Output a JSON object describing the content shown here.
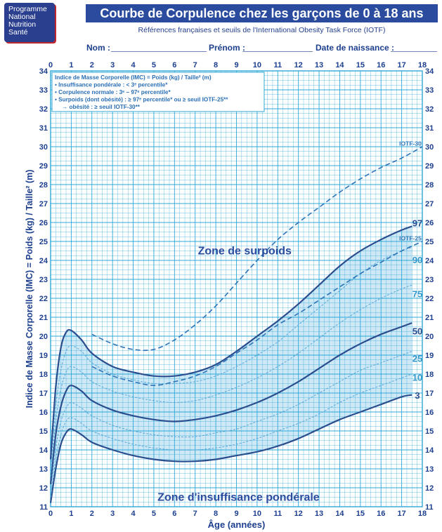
{
  "logo": {
    "lines": [
      "Programme",
      "National",
      "Nutrition",
      "Santé"
    ]
  },
  "header": {
    "title": "Courbe de Corpulence chez les garçons de 0 à 18 ans",
    "subtitle": "Références françaises et seuils de l'International Obesity Task Force (IOTF)",
    "nom_label": "Nom :",
    "prenom_label": "Prénom :",
    "naissance_label": "Date de naissance :"
  },
  "colors": {
    "grid": "#2fa8d8",
    "curve": "#2a4e8e",
    "dashed": "#2d74b6",
    "band": "#c6e4f5"
  },
  "chart_data": {
    "type": "line",
    "xlabel": "Âge (années)",
    "ylabel": "Indice de Masse Corporelle (IMC) = Poids (kg) / Taille² (m)",
    "xlim": [
      0,
      18
    ],
    "ylim": [
      11,
      34
    ],
    "x_ticks": [
      0,
      1,
      2,
      3,
      4,
      5,
      6,
      7,
      8,
      9,
      10,
      11,
      12,
      13,
      14,
      15,
      16,
      17,
      18
    ],
    "y_ticks": [
      11,
      12,
      13,
      14,
      15,
      16,
      17,
      18,
      19,
      20,
      21,
      22,
      23,
      24,
      25,
      26,
      27,
      28,
      29,
      30,
      31,
      32,
      33,
      34
    ],
    "grid": true,
    "legend": {
      "title": "Indice de Masse Corporelle (IMC) = Poids (kg) / Taille² (m)",
      "lines": [
        "• Insuffisance pondérale : < 3ᵉ percentile*",
        "• Corpulence normale : 3ᵉ – 97ᵉ percentile*",
        "• Surpoids (dont obésité) : ≥ 97ᵉ percentile* ou ≥ seuil IOTF-25**",
        "→ obésité : ≥ seuil IOTF-30**"
      ]
    },
    "annotations": [
      "Zone de surpoids",
      "Zone d'insuffisance pondérale"
    ],
    "series": [
      {
        "name": "3",
        "style": "solid",
        "x": [
          0,
          0.25,
          0.5,
          0.75,
          1,
          1.5,
          2,
          3,
          4,
          5,
          6,
          7,
          8,
          9,
          10,
          11,
          12,
          13,
          14,
          15,
          16,
          17,
          17.5
        ],
        "y": [
          11.2,
          13.0,
          14.3,
          14.9,
          15.1,
          14.8,
          14.4,
          14.0,
          13.7,
          13.5,
          13.4,
          13.4,
          13.5,
          13.7,
          13.9,
          14.2,
          14.6,
          15.1,
          15.6,
          16.0,
          16.4,
          16.8,
          16.9
        ]
      },
      {
        "name": "10",
        "style": "dashed-thin",
        "x": [
          0,
          0.25,
          0.5,
          0.75,
          1,
          1.5,
          2,
          3,
          4,
          5,
          6,
          7,
          8,
          9,
          10,
          11,
          12,
          13,
          14,
          15,
          16,
          17,
          17.5
        ],
        "y": [
          11.5,
          13.5,
          14.8,
          15.5,
          15.7,
          15.4,
          15.0,
          14.6,
          14.3,
          14.1,
          14.0,
          14.0,
          14.1,
          14.3,
          14.6,
          15.0,
          15.4,
          15.9,
          16.5,
          17.0,
          17.4,
          17.8,
          18.0
        ]
      },
      {
        "name": "25",
        "style": "dashed-thin",
        "x": [
          0,
          0.25,
          0.5,
          0.75,
          1,
          1.5,
          2,
          3,
          4,
          5,
          6,
          7,
          8,
          9,
          10,
          11,
          12,
          13,
          14,
          15,
          16,
          17,
          17.5
        ],
        "y": [
          11.8,
          14.1,
          15.5,
          16.2,
          16.5,
          16.2,
          15.8,
          15.3,
          15.0,
          14.8,
          14.7,
          14.7,
          14.9,
          15.1,
          15.5,
          15.9,
          16.4,
          17.0,
          17.6,
          18.2,
          18.6,
          19.0,
          19.2
        ]
      },
      {
        "name": "50",
        "style": "solid",
        "x": [
          0,
          0.25,
          0.5,
          0.75,
          1,
          1.5,
          2,
          3,
          4,
          5,
          6,
          7,
          8,
          9,
          10,
          11,
          12,
          13,
          14,
          15,
          16,
          17,
          17.5
        ],
        "y": [
          12.2,
          14.8,
          16.3,
          17.1,
          17.4,
          17.1,
          16.6,
          16.1,
          15.8,
          15.6,
          15.5,
          15.6,
          15.8,
          16.1,
          16.5,
          17.0,
          17.6,
          18.3,
          19.0,
          19.6,
          20.1,
          20.5,
          20.7
        ]
      },
      {
        "name": "75",
        "style": "dashed-thin",
        "x": [
          0,
          0.25,
          0.5,
          0.75,
          1,
          1.5,
          2,
          3,
          4,
          5,
          6,
          7,
          8,
          9,
          10,
          11,
          12,
          13,
          14,
          15,
          16,
          17,
          17.5
        ],
        "y": [
          12.6,
          15.5,
          17.2,
          18.1,
          18.4,
          18.1,
          17.6,
          17.1,
          16.8,
          16.6,
          16.5,
          16.6,
          16.9,
          17.3,
          17.8,
          18.4,
          19.1,
          19.9,
          20.7,
          21.4,
          22.0,
          22.5,
          22.7
        ]
      },
      {
        "name": "90",
        "style": "dashed-thin",
        "x": [
          0,
          0.25,
          0.5,
          0.75,
          1,
          1.5,
          2,
          3,
          4,
          5,
          6,
          7,
          8,
          9,
          10,
          11,
          12,
          13,
          14,
          15,
          16,
          17,
          17.5
        ],
        "y": [
          13.0,
          16.3,
          18.2,
          19.2,
          19.5,
          19.2,
          18.6,
          18.0,
          17.7,
          17.5,
          17.5,
          17.6,
          17.9,
          18.4,
          19.0,
          19.7,
          20.6,
          21.5,
          22.4,
          23.3,
          24.0,
          24.5,
          24.7
        ]
      },
      {
        "name": "97",
        "style": "solid",
        "x": [
          0,
          0.25,
          0.5,
          0.75,
          1,
          1.5,
          2,
          3,
          4,
          5,
          6,
          7,
          8,
          9,
          10,
          11,
          12,
          13,
          14,
          15,
          16,
          17,
          17.5
        ],
        "y": [
          13.5,
          17.3,
          19.4,
          20.2,
          20.3,
          19.8,
          19.1,
          18.4,
          18.1,
          17.9,
          17.9,
          18.1,
          18.5,
          19.2,
          20.0,
          20.8,
          21.7,
          22.7,
          23.7,
          24.5,
          25.1,
          25.6,
          25.8
        ]
      },
      {
        "name": "IOTF-25",
        "style": "dashed",
        "x": [
          2,
          3,
          4,
          5,
          6,
          7,
          8,
          9,
          10,
          11,
          12,
          13,
          14,
          15,
          16,
          17,
          18
        ],
        "y": [
          18.4,
          17.9,
          17.6,
          17.4,
          17.6,
          17.9,
          18.4,
          19.1,
          19.8,
          20.6,
          21.2,
          21.9,
          22.6,
          23.3,
          23.9,
          24.5,
          25.0
        ]
      },
      {
        "name": "IOTF-30",
        "style": "dashed",
        "x": [
          2,
          3,
          4,
          5,
          6,
          7,
          8,
          9,
          10,
          11,
          12,
          13,
          14,
          15,
          16,
          17,
          18
        ],
        "y": [
          20.1,
          19.6,
          19.3,
          19.3,
          19.8,
          20.6,
          21.6,
          22.8,
          24.0,
          25.1,
          26.0,
          26.8,
          27.6,
          28.3,
          28.9,
          29.4,
          30.0
        ]
      }
    ]
  }
}
